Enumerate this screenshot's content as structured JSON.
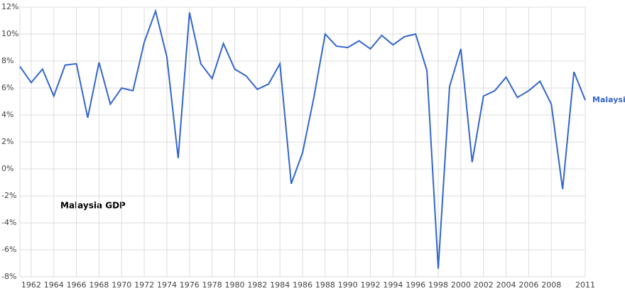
{
  "chart_data": {
    "type": "line",
    "annotation": "Malaysia GDP",
    "x": [
      1961,
      1962,
      1963,
      1964,
      1965,
      1966,
      1967,
      1968,
      1969,
      1970,
      1971,
      1972,
      1973,
      1974,
      1975,
      1976,
      1977,
      1978,
      1979,
      1980,
      1981,
      1982,
      1983,
      1984,
      1985,
      1986,
      1987,
      1988,
      1989,
      1990,
      1991,
      1992,
      1993,
      1994,
      1995,
      1996,
      1997,
      1998,
      1999,
      2000,
      2001,
      2002,
      2003,
      2004,
      2005,
      2006,
      2007,
      2008,
      2009,
      2010,
      2011
    ],
    "series": [
      {
        "name": "Malaysia",
        "color": "#3366cc",
        "values": [
          7.6,
          6.4,
          7.4,
          5.4,
          7.7,
          7.8,
          3.8,
          7.9,
          4.8,
          6.0,
          5.8,
          9.4,
          11.7,
          8.3,
          0.8,
          11.6,
          7.8,
          6.7,
          9.3,
          7.4,
          6.9,
          5.9,
          6.3,
          7.8,
          -1.1,
          1.2,
          5.3,
          10.0,
          9.1,
          9.0,
          9.5,
          8.9,
          9.9,
          9.2,
          9.8,
          10.0,
          7.3,
          -7.4,
          6.1,
          8.9,
          0.5,
          5.4,
          5.8,
          6.8,
          5.3,
          5.8,
          6.5,
          4.8,
          -1.5,
          7.2,
          5.1
        ]
      }
    ],
    "xlim": [
      1961,
      2011
    ],
    "xticks": [
      1962,
      1964,
      1966,
      1968,
      1970,
      1972,
      1974,
      1976,
      1978,
      1980,
      1982,
      1984,
      1986,
      1988,
      1990,
      1992,
      1994,
      1996,
      1998,
      2000,
      2002,
      2004,
      2006,
      2008,
      2011
    ],
    "ylim": [
      -8,
      12
    ],
    "yticks": [
      {
        "value": -8,
        "label": "-8%"
      },
      {
        "value": -6,
        "label": "-6%"
      },
      {
        "value": -4,
        "label": "-4%"
      },
      {
        "value": -2,
        "label": "-2%"
      },
      {
        "value": 0,
        "label": "0%"
      },
      {
        "value": 2,
        "label": "2%"
      },
      {
        "value": 4,
        "label": "4%"
      },
      {
        "value": 6,
        "label": "6%"
      },
      {
        "value": 8,
        "label": "8%"
      },
      {
        "value": 10,
        "label": "10%"
      },
      {
        "value": 12,
        "label": "12%"
      }
    ],
    "grid": true
  }
}
